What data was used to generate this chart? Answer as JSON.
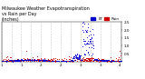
{
  "title": "Milwaukee Weather Evapotranspiration\nvs Rain per Day\n(Inches)",
  "title_fontsize": 3.5,
  "et_color": "#0000cc",
  "rain_color": "#cc0000",
  "legend_et": "ET",
  "legend_rain": "Rain",
  "background_color": "#ffffff",
  "xlim": [
    0,
    730
  ],
  "ylim": [
    0.0,
    2.5
  ],
  "yticks": [
    0.5,
    1.0,
    1.5,
    2.0,
    2.5
  ],
  "ytick_labels": [
    "0.5",
    "1.0",
    "1.5",
    "2.0",
    "2.5"
  ],
  "xtick_positions": [
    0,
    60,
    120,
    180,
    240,
    300,
    360,
    420,
    480,
    540,
    600,
    660,
    720
  ],
  "xtick_labels": [
    "1",
    "",
    "1",
    "",
    "2",
    "",
    "2",
    "",
    "3",
    "",
    "3",
    "",
    "4"
  ],
  "ytick_fontsize": 3.0,
  "xtick_fontsize": 3.0,
  "grid_color": "#bbbbbb",
  "dot_size": 0.4,
  "grid_linewidth": 0.4,
  "spine_linewidth": 0.3
}
